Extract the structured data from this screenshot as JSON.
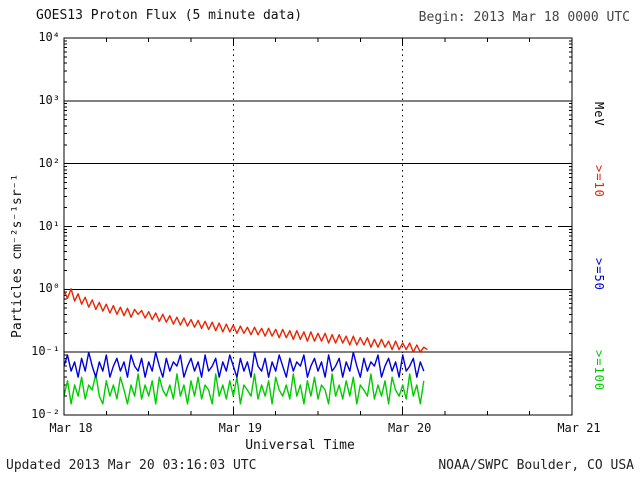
{
  "header": {
    "title": "GOES13 Proton Flux (5 minute data)",
    "begin": "Begin: 2013 Mar 18 0000 UTC"
  },
  "footer": {
    "updated": "Updated 2013 Mar 20 03:16:03 UTC",
    "source": "NOAA/SWPC Boulder, CO USA"
  },
  "chart_data": {
    "type": "line",
    "title": "GOES13 Proton Flux (5 minute data)",
    "xlabel": "Universal Time",
    "ylabel": "Particles cm⁻²s⁻¹sr⁻¹",
    "x_axis": {
      "range_hours": [
        0,
        72
      ],
      "tick_hours": [
        0,
        24,
        48,
        72
      ],
      "tick_labels": [
        "Mar 18",
        "Mar 19",
        "Mar 20",
        "Mar 21"
      ],
      "minor_tick_step_hours": 6
    },
    "y_axis": {
      "log_range": [
        -2,
        4
      ],
      "tick_exponents": [
        4,
        3,
        2,
        1,
        0,
        -1,
        -2
      ],
      "tick_labels": [
        "10⁴",
        "10³",
        "10²",
        "10¹",
        "10⁰",
        "10⁻¹",
        "10⁻²"
      ]
    },
    "grid": {
      "hlines": [
        {
          "exponent": 3,
          "style": "solid"
        },
        {
          "exponent": 2,
          "style": "solid"
        },
        {
          "exponent": 1,
          "style": "dashed"
        },
        {
          "exponent": 0,
          "style": "solid"
        },
        {
          "exponent": -1,
          "style": "solid"
        }
      ],
      "vline_hours": [
        24,
        48
      ],
      "vline_style": "dotted"
    },
    "right_labels": [
      {
        "text": "MeV",
        "color": "#000000"
      },
      {
        "text": ">=10",
        "color": "#ee2200"
      },
      {
        "text": ">=50",
        "color": "#0000dd"
      },
      {
        "text": ">=100",
        "color": "#00cc00"
      }
    ],
    "series": [
      {
        "name": ">=10 MeV",
        "color": "#ee2200",
        "start_hour": 0,
        "step_hours": 0.5,
        "values": [
          0.95,
          0.72,
          1.02,
          0.65,
          0.85,
          0.58,
          0.75,
          0.52,
          0.68,
          0.48,
          0.62,
          0.45,
          0.58,
          0.42,
          0.55,
          0.4,
          0.52,
          0.38,
          0.5,
          0.36,
          0.48,
          0.4,
          0.46,
          0.35,
          0.44,
          0.33,
          0.42,
          0.31,
          0.4,
          0.3,
          0.38,
          0.28,
          0.36,
          0.27,
          0.35,
          0.26,
          0.33,
          0.25,
          0.32,
          0.24,
          0.31,
          0.23,
          0.3,
          0.22,
          0.29,
          0.21,
          0.28,
          0.21,
          0.27,
          0.2,
          0.26,
          0.2,
          0.25,
          0.19,
          0.25,
          0.19,
          0.24,
          0.18,
          0.24,
          0.18,
          0.23,
          0.17,
          0.23,
          0.17,
          0.22,
          0.16,
          0.22,
          0.16,
          0.21,
          0.15,
          0.21,
          0.15,
          0.2,
          0.15,
          0.2,
          0.14,
          0.19,
          0.14,
          0.19,
          0.14,
          0.18,
          0.13,
          0.18,
          0.13,
          0.17,
          0.13,
          0.17,
          0.12,
          0.16,
          0.12,
          0.16,
          0.12,
          0.15,
          0.11,
          0.15,
          0.11,
          0.14,
          0.11,
          0.14,
          0.1,
          0.13,
          0.1,
          0.12,
          0.11
        ]
      },
      {
        "name": ">=50 MeV",
        "color": "#0000dd",
        "start_hour": 0,
        "step_hours": 0.5,
        "values": [
          0.06,
          0.09,
          0.05,
          0.07,
          0.04,
          0.08,
          0.05,
          0.1,
          0.06,
          0.04,
          0.07,
          0.05,
          0.09,
          0.04,
          0.06,
          0.08,
          0.05,
          0.07,
          0.04,
          0.09,
          0.06,
          0.05,
          0.08,
          0.04,
          0.07,
          0.05,
          0.1,
          0.06,
          0.04,
          0.08,
          0.05,
          0.07,
          0.06,
          0.09,
          0.04,
          0.06,
          0.08,
          0.05,
          0.07,
          0.04,
          0.09,
          0.05,
          0.06,
          0.08,
          0.04,
          0.07,
          0.05,
          0.09,
          0.06,
          0.04,
          0.08,
          0.05,
          0.07,
          0.04,
          0.1,
          0.06,
          0.05,
          0.08,
          0.04,
          0.07,
          0.05,
          0.09,
          0.06,
          0.04,
          0.08,
          0.05,
          0.07,
          0.06,
          0.09,
          0.04,
          0.06,
          0.08,
          0.05,
          0.07,
          0.04,
          0.09,
          0.05,
          0.06,
          0.08,
          0.04,
          0.07,
          0.05,
          0.1,
          0.06,
          0.04,
          0.08,
          0.05,
          0.07,
          0.06,
          0.09,
          0.04,
          0.06,
          0.08,
          0.05,
          0.07,
          0.04,
          0.09,
          0.05,
          0.06,
          0.08,
          0.04,
          0.07,
          0.05
        ]
      },
      {
        "name": ">=100 MeV",
        "color": "#00cc00",
        "start_hour": 0,
        "step_hours": 0.5,
        "values": [
          0.02,
          0.035,
          0.015,
          0.03,
          0.02,
          0.04,
          0.018,
          0.03,
          0.025,
          0.045,
          0.02,
          0.015,
          0.035,
          0.02,
          0.03,
          0.018,
          0.04,
          0.025,
          0.015,
          0.03,
          0.02,
          0.045,
          0.018,
          0.03,
          0.02,
          0.035,
          0.015,
          0.04,
          0.025,
          0.02,
          0.03,
          0.018,
          0.045,
          0.02,
          0.03,
          0.015,
          0.035,
          0.02,
          0.04,
          0.018,
          0.03,
          0.025,
          0.015,
          0.045,
          0.02,
          0.03,
          0.018,
          0.035,
          0.02,
          0.04,
          0.015,
          0.03,
          0.025,
          0.02,
          0.045,
          0.018,
          0.03,
          0.02,
          0.035,
          0.015,
          0.04,
          0.025,
          0.02,
          0.03,
          0.018,
          0.045,
          0.02,
          0.03,
          0.015,
          0.035,
          0.02,
          0.04,
          0.018,
          0.03,
          0.025,
          0.015,
          0.045,
          0.02,
          0.03,
          0.018,
          0.035,
          0.02,
          0.04,
          0.015,
          0.03,
          0.025,
          0.02,
          0.045,
          0.018,
          0.03,
          0.02,
          0.035,
          0.015,
          0.04,
          0.025,
          0.02,
          0.03,
          0.018,
          0.045,
          0.02,
          0.03,
          0.015,
          0.035
        ]
      }
    ]
  }
}
